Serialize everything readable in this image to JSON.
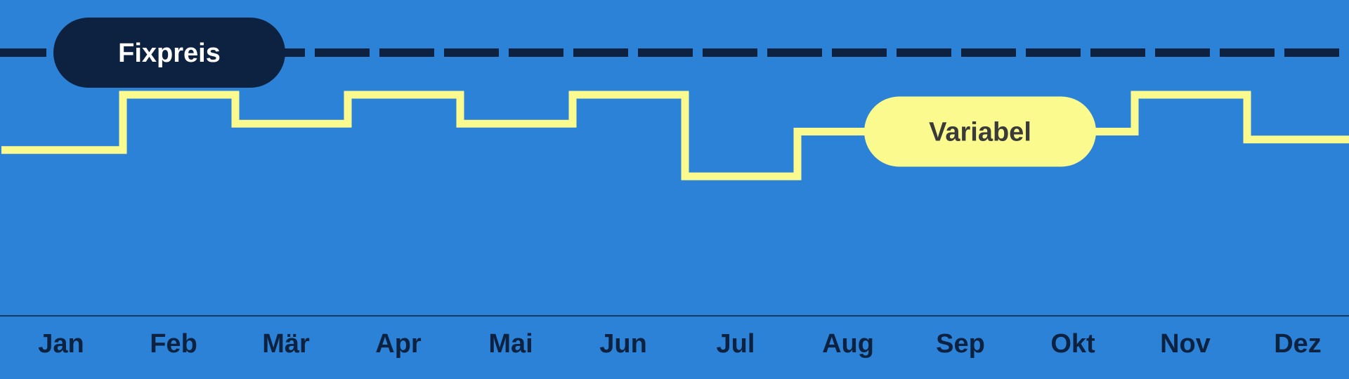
{
  "chart_data": {
    "type": "line",
    "categories": [
      "Jan",
      "Feb",
      "Mär",
      "Apr",
      "Mai",
      "Jun",
      "Jul",
      "Aug",
      "Sep",
      "Okt",
      "Nov",
      "Dez"
    ],
    "series": [
      {
        "name": "Fixpreis",
        "style": "dashed",
        "values": [
          100,
          100,
          100,
          100,
          100,
          100,
          100,
          100,
          100,
          100,
          100,
          100
        ]
      },
      {
        "name": "Variabel",
        "style": "step",
        "values": [
          63,
          84,
          73,
          84,
          73,
          84,
          53,
          70,
          70,
          70,
          84,
          67
        ]
      }
    ],
    "title": "",
    "xlabel": "",
    "ylabel": "",
    "ylim": [
      0,
      120
    ],
    "grid": false,
    "axis_values_shown": false
  },
  "labels": {
    "fixed": "Fixpreis",
    "variable": "Variabel"
  },
  "colors": {
    "background": "#2c82d6",
    "fixed_line": "#0d2240",
    "fixed_pill": "#0d2240",
    "fixed_pill_text": "#ffffff",
    "variable_line": "#fafa8e",
    "variable_pill": "#fafa8e",
    "variable_pill_text": "#3a3a3a",
    "axis": "#0d2240",
    "month_text": "#0d2240"
  }
}
